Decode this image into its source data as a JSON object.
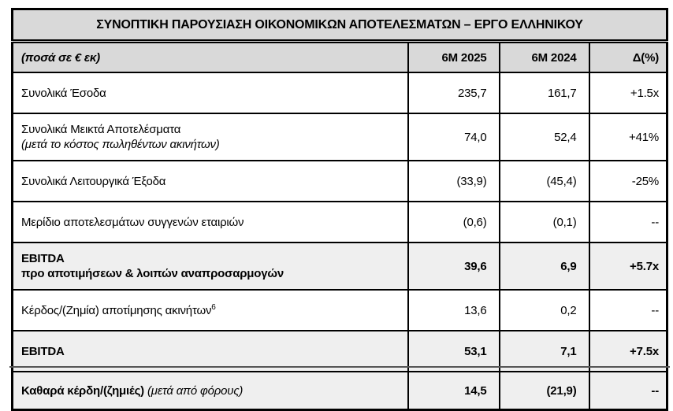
{
  "table": {
    "title": "ΣΥΝΟΠΤΙΚΗ ΠΑΡΟΥΣΙΑΣΗ ΟΙΚΟΝΟΜΙΚΩΝ ΑΠΟΤΕΛΕΣΜΑΤΩΝ – ΕΡΓΟ ΕΛΛΗΝΙΚΟΥ",
    "columns": {
      "label": "(ποσά σε € εκ)",
      "period_current": "6M 2025",
      "period_prior": "6M 2024",
      "delta": "Δ(%)"
    },
    "rows": [
      {
        "label": "Συνολικά Έσοδα",
        "v2025": "235,7",
        "v2024": "161,7",
        "delta": "+1.5x"
      },
      {
        "label": "Συνολικά Μεικτά Αποτελέσματα",
        "sub": "(μετά το κόστος πωληθέντων ακινήτων)",
        "v2025": "74,0",
        "v2024": "52,4",
        "delta": "+41%"
      },
      {
        "label": "Συνολικά Λειτουργικά Έξοδα",
        "v2025": "(33,9)",
        "v2024": "(45,4)",
        "delta": "-25%"
      },
      {
        "label": "Μερίδιο αποτελεσμάτων συγγενών εταιριών",
        "v2025": "(0,6)",
        "v2024": "(0,1)",
        "delta": "--"
      },
      {
        "label": "EBITDA",
        "sub": "προ αποτιμήσεων & λοιπών αναπροσαρμογών",
        "v2025": "39,6",
        "v2024": "6,9",
        "delta": "+5.7x"
      },
      {
        "label": "Κέρδος/(Ζημία) αποτίμησης ακινήτων",
        "footnote": "6",
        "v2025": "13,6",
        "v2024": "0,2",
        "delta": "--"
      },
      {
        "label": "EBITDA",
        "v2025": "53,1",
        "v2024": "7,1",
        "delta": "+7.5x"
      },
      {
        "label": "Καθαρά κέρδη/(ζημιές)",
        "note": "(μετά από φόρους)",
        "v2025": "14,5",
        "v2024": "(21,9)",
        "delta": "--"
      }
    ]
  },
  "colors": {
    "header_bg": "#d9d9d9",
    "highlight_bg": "#efefef",
    "border_color": "#000000"
  }
}
